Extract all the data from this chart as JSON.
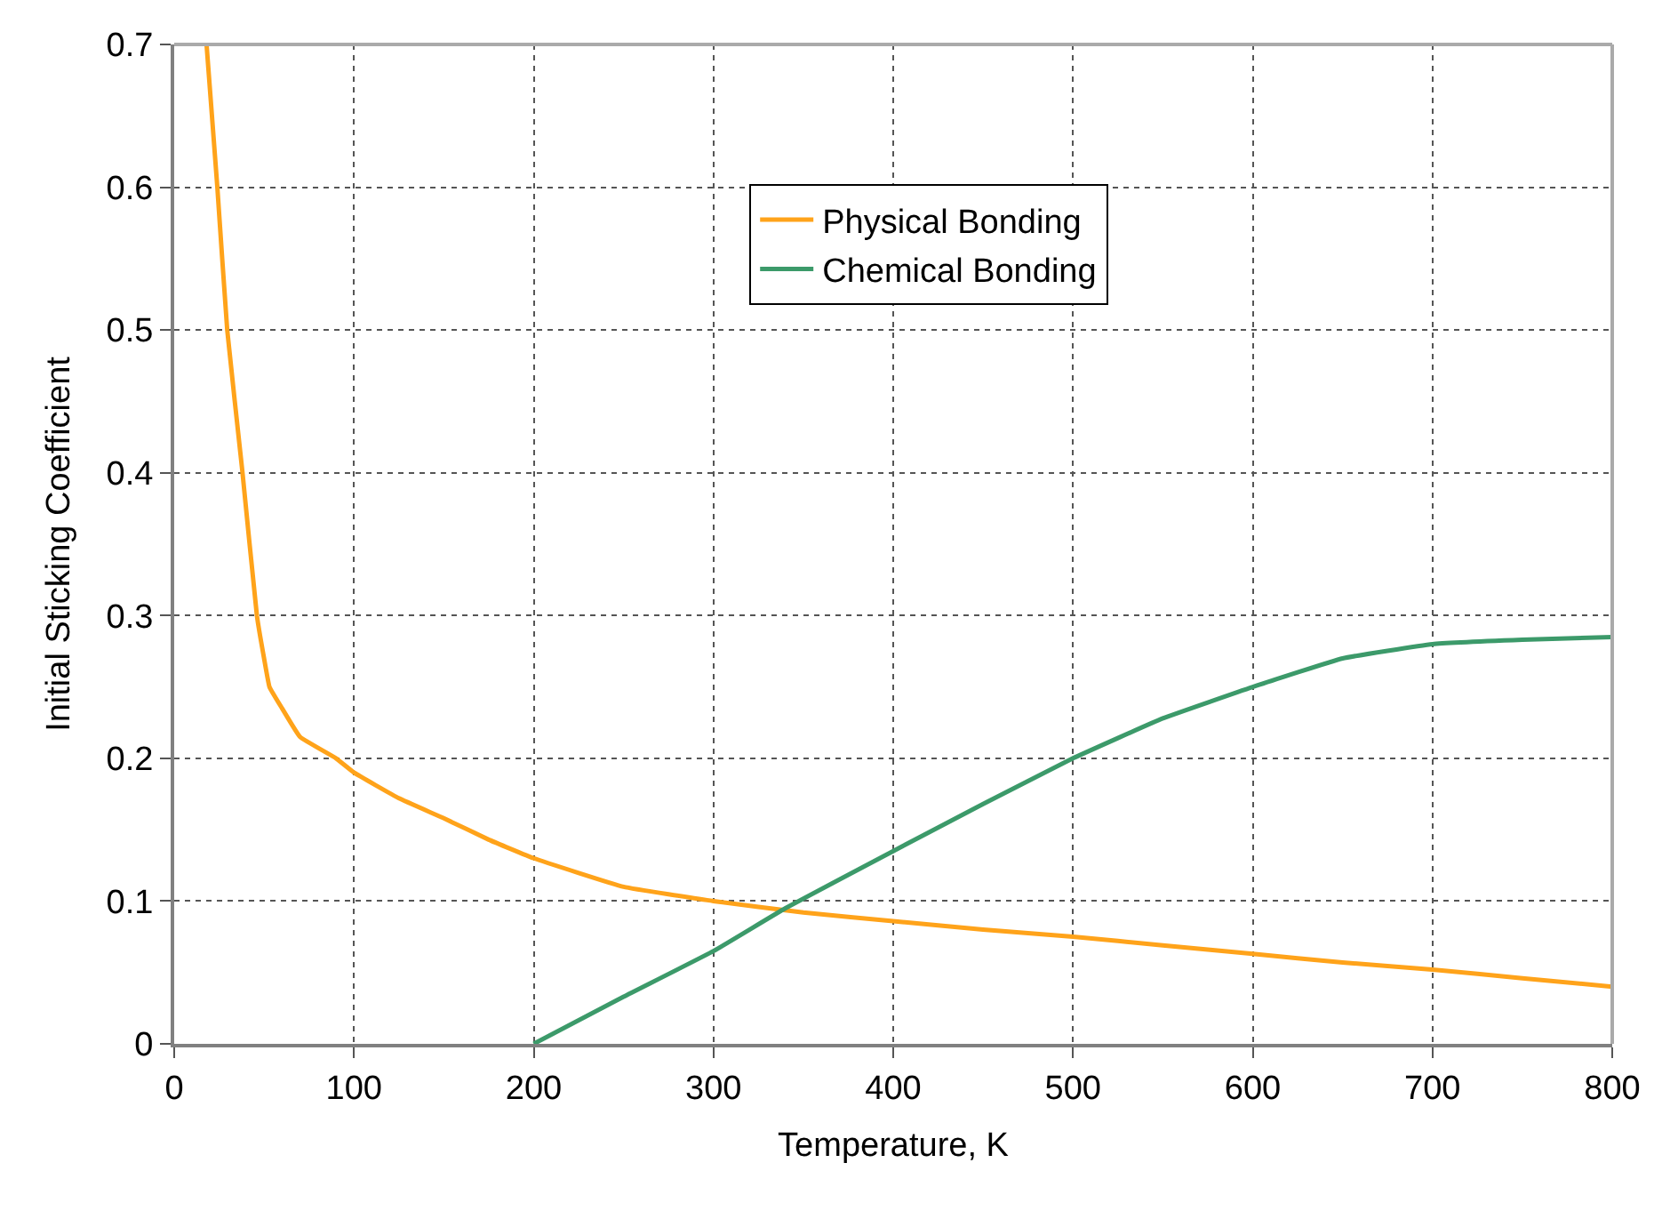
{
  "chart_data": {
    "type": "line",
    "xlabel": "Temperature, K",
    "ylabel": "Initial Sticking Coefficient",
    "xlim": [
      0,
      800
    ],
    "xticks": [
      0,
      100,
      200,
      300,
      400,
      500,
      600,
      700,
      800
    ],
    "ylim": [
      0,
      0.7
    ],
    "yticks": [
      0,
      0.1,
      0.2,
      0.3,
      0.4,
      0.5,
      0.6,
      0.7
    ],
    "grid": true,
    "legend": "top right",
    "marker": "none",
    "line_style": "solid",
    "series": [
      {
        "name": "Physical Bonding",
        "color": "#ffa31a",
        "x": [
          18,
          24,
          29.5,
          38,
          46,
          50,
          53,
          60,
          70,
          90,
          100,
          125,
          150,
          175,
          200,
          250,
          300,
          350,
          400,
          450,
          500,
          550,
          600,
          650,
          700,
          750,
          800
        ],
        "values": [
          0.7,
          0.6,
          0.5,
          0.4,
          0.3,
          0.27,
          0.25,
          0.235,
          0.215,
          0.2,
          0.19,
          0.172,
          0.158,
          0.143,
          0.13,
          0.11,
          0.1,
          0.092,
          0.086,
          0.08,
          0.075,
          0.069,
          0.063,
          0.057,
          0.052,
          0.046,
          0.04
        ]
      },
      {
        "name": "Chemical Bonding",
        "color": "#3c9a6a",
        "x": [
          200,
          250,
          300,
          340,
          400,
          450,
          500,
          550,
          600,
          650,
          700,
          750,
          800
        ],
        "values": [
          0,
          0.033,
          0.065,
          0.095,
          0.135,
          0.168,
          0.2,
          0.228,
          0.25,
          0.27,
          0.28,
          0.283,
          0.285
        ]
      }
    ]
  }
}
